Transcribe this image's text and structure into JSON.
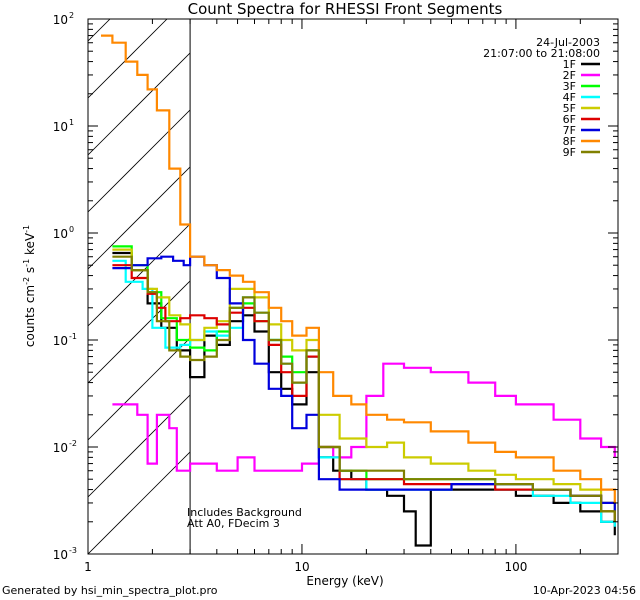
{
  "chart_data": {
    "type": "line",
    "title": "Count Spectra for RHESSI Front Segments",
    "xlabel": "Energy (keV)",
    "ylabel_parts": {
      "base": "counts cm",
      "exp1": "-2",
      "mid": " s",
      "exp2": "-1",
      "tail": " keV",
      "exp3": "-1"
    },
    "xscale": "log",
    "yscale": "log",
    "xlim": [
      1,
      300
    ],
    "ylim": [
      0.001,
      100
    ],
    "x_ticks": [
      {
        "value": 1,
        "label": "1"
      },
      {
        "value": 10,
        "label": "10"
      },
      {
        "value": 100,
        "label": "100"
      }
    ],
    "y_ticks": [
      {
        "value": 0.001,
        "base": "10",
        "exp": "-3"
      },
      {
        "value": 0.01,
        "base": "10",
        "exp": "-2"
      },
      {
        "value": 0.1,
        "base": "10",
        "exp": "-1"
      },
      {
        "value": 1,
        "base": "10",
        "exp": "0"
      },
      {
        "value": 10,
        "base": "10",
        "exp": "1"
      },
      {
        "value": 100,
        "base": "10",
        "exp": "2"
      }
    ],
    "date": "24-Jul-2003",
    "time_range": "21:07:00 to 21:08:00",
    "excluded_region": {
      "from": 1,
      "to": 3.0,
      "pattern": "hatched"
    },
    "annotations": [
      "Includes Background",
      "Att A0, FDecim 3"
    ],
    "series": [
      {
        "name": "1F",
        "color": "#000000",
        "points": [
          [
            1.3,
            0.65
          ],
          [
            1.6,
            0.45
          ],
          [
            1.9,
            0.22
          ],
          [
            2.2,
            0.13
          ],
          [
            2.6,
            0.08
          ],
          [
            3.0,
            0.045
          ],
          [
            3.5,
            0.11
          ],
          [
            4.0,
            0.09
          ],
          [
            4.6,
            0.15
          ],
          [
            5.3,
            0.17
          ],
          [
            6.0,
            0.12
          ],
          [
            7.0,
            0.05
          ],
          [
            8.0,
            0.035
          ],
          [
            9.0,
            0.025
          ],
          [
            10.5,
            0.05
          ],
          [
            12,
            0.008
          ],
          [
            14,
            0.006
          ],
          [
            17,
            0.005
          ],
          [
            20,
            0.004
          ],
          [
            25,
            0.0035
          ],
          [
            30,
            0.0025
          ],
          [
            34,
            0.0012
          ],
          [
            40,
            0.004
          ],
          [
            60,
            0.004
          ],
          [
            100,
            0.0035
          ],
          [
            150,
            0.003
          ],
          [
            200,
            0.0025
          ],
          [
            250,
            0.002
          ],
          [
            290,
            0.0015
          ]
        ]
      },
      {
        "name": "2F",
        "color": "#ff00ff",
        "points": [
          [
            1.3,
            0.025
          ],
          [
            1.7,
            0.02
          ],
          [
            1.9,
            0.007
          ],
          [
            2.1,
            0.02
          ],
          [
            2.4,
            0.015
          ],
          [
            2.6,
            0.006
          ],
          [
            3.0,
            0.007
          ],
          [
            4.0,
            0.006
          ],
          [
            5.0,
            0.008
          ],
          [
            6.0,
            0.006
          ],
          [
            8.0,
            0.006
          ],
          [
            10,
            0.007
          ],
          [
            12,
            0.01
          ],
          [
            14,
            0.008
          ],
          [
            17,
            0.01
          ],
          [
            20,
            0.03
          ],
          [
            24,
            0.06
          ],
          [
            30,
            0.055
          ],
          [
            40,
            0.05
          ],
          [
            60,
            0.04
          ],
          [
            80,
            0.03
          ],
          [
            100,
            0.025
          ],
          [
            150,
            0.018
          ],
          [
            200,
            0.012
          ],
          [
            250,
            0.01
          ],
          [
            290,
            0.008
          ]
        ]
      },
      {
        "name": "3F",
        "color": "#00ff00",
        "points": [
          [
            1.3,
            0.75
          ],
          [
            1.6,
            0.5
          ],
          [
            1.9,
            0.28
          ],
          [
            2.2,
            0.16
          ],
          [
            2.6,
            0.1
          ],
          [
            3.0,
            0.085
          ],
          [
            3.5,
            0.08
          ],
          [
            4.0,
            0.12
          ],
          [
            4.6,
            0.2
          ],
          [
            5.3,
            0.22
          ],
          [
            6.0,
            0.15
          ],
          [
            7.0,
            0.1
          ],
          [
            8.0,
            0.07
          ],
          [
            9.0,
            0.05
          ],
          [
            10.5,
            0.08
          ],
          [
            12,
            0.01
          ],
          [
            15,
            0.006
          ],
          [
            20,
            0.005
          ],
          [
            30,
            0.005
          ],
          [
            50,
            0.005
          ],
          [
            80,
            0.0045
          ],
          [
            120,
            0.004
          ],
          [
            180,
            0.0035
          ],
          [
            250,
            0.0025
          ],
          [
            290,
            0.002
          ]
        ]
      },
      {
        "name": "4F",
        "color": "#00ffff",
        "points": [
          [
            1.3,
            0.55
          ],
          [
            1.5,
            0.35
          ],
          [
            1.8,
            0.3
          ],
          [
            2.0,
            0.13
          ],
          [
            2.3,
            0.085
          ],
          [
            2.7,
            0.09
          ],
          [
            3.0,
            0.1
          ],
          [
            3.5,
            0.12
          ],
          [
            4.0,
            0.11
          ],
          [
            4.6,
            0.13
          ],
          [
            5.3,
            0.25
          ],
          [
            6.0,
            0.18
          ],
          [
            7.0,
            0.1
          ],
          [
            8.0,
            0.06
          ],
          [
            9.0,
            0.04
          ],
          [
            10.5,
            0.07
          ],
          [
            12,
            0.008
          ],
          [
            15,
            0.005
          ],
          [
            20,
            0.004
          ],
          [
            30,
            0.004
          ],
          [
            50,
            0.0045
          ],
          [
            80,
            0.004
          ],
          [
            120,
            0.0035
          ],
          [
            180,
            0.003
          ],
          [
            250,
            0.002
          ],
          [
            290,
            0.0018
          ]
        ]
      },
      {
        "name": "5F",
        "color": "#cccc00",
        "points": [
          [
            1.3,
            0.7
          ],
          [
            1.6,
            0.45
          ],
          [
            1.9,
            0.3
          ],
          [
            2.1,
            0.25
          ],
          [
            2.4,
            0.17
          ],
          [
            2.7,
            0.14
          ],
          [
            3.0,
            0.1
          ],
          [
            3.5,
            0.13
          ],
          [
            4.0,
            0.15
          ],
          [
            4.6,
            0.3
          ],
          [
            5.3,
            0.3
          ],
          [
            6.0,
            0.25
          ],
          [
            7.0,
            0.14
          ],
          [
            8.0,
            0.1
          ],
          [
            9.0,
            0.08
          ],
          [
            10.5,
            0.1
          ],
          [
            12,
            0.02
          ],
          [
            15,
            0.012
          ],
          [
            20,
            0.01
          ],
          [
            25,
            0.011
          ],
          [
            30,
            0.008
          ],
          [
            40,
            0.007
          ],
          [
            60,
            0.006
          ],
          [
            80,
            0.0055
          ],
          [
            100,
            0.005
          ],
          [
            150,
            0.0045
          ],
          [
            200,
            0.004
          ],
          [
            250,
            0.003
          ],
          [
            290,
            0.0025
          ]
        ]
      },
      {
        "name": "6F",
        "color": "#dd0000",
        "points": [
          [
            1.3,
            0.5
          ],
          [
            1.6,
            0.38
          ],
          [
            1.9,
            0.27
          ],
          [
            2.1,
            0.2
          ],
          [
            2.3,
            0.15
          ],
          [
            2.7,
            0.16
          ],
          [
            3.0,
            0.17
          ],
          [
            3.5,
            0.16
          ],
          [
            4.0,
            0.14
          ],
          [
            4.6,
            0.18
          ],
          [
            5.3,
            0.2
          ],
          [
            6.0,
            0.15
          ],
          [
            7.0,
            0.09
          ],
          [
            8.0,
            0.05
          ],
          [
            9.0,
            0.03
          ],
          [
            10.5,
            0.07
          ],
          [
            12,
            0.01
          ],
          [
            15,
            0.005
          ],
          [
            20,
            0.005
          ],
          [
            30,
            0.0045
          ],
          [
            50,
            0.0045
          ],
          [
            80,
            0.004
          ],
          [
            120,
            0.004
          ],
          [
            180,
            0.0035
          ],
          [
            250,
            0.0025
          ],
          [
            290,
            0.002
          ]
        ]
      },
      {
        "name": "7F",
        "color": "#0000dd",
        "points": [
          [
            1.3,
            0.47
          ],
          [
            1.6,
            0.5
          ],
          [
            1.9,
            0.58
          ],
          [
            2.2,
            0.6
          ],
          [
            2.5,
            0.55
          ],
          [
            2.8,
            0.5
          ],
          [
            3.0,
            0.6
          ],
          [
            3.5,
            0.5
          ],
          [
            4.0,
            0.38
          ],
          [
            4.6,
            0.22
          ],
          [
            5.3,
            0.1
          ],
          [
            6.0,
            0.06
          ],
          [
            7.0,
            0.035
          ],
          [
            8.0,
            0.03
          ],
          [
            9.0,
            0.015
          ],
          [
            10.5,
            0.02
          ],
          [
            12,
            0.005
          ],
          [
            15,
            0.004
          ],
          [
            20,
            0.004
          ],
          [
            30,
            0.004
          ],
          [
            50,
            0.0045
          ],
          [
            80,
            0.0045
          ],
          [
            120,
            0.004
          ],
          [
            180,
            0.0035
          ],
          [
            250,
            0.003
          ],
          [
            290,
            0.0025
          ]
        ]
      },
      {
        "name": "8F",
        "color": "#ff8800",
        "points": [
          [
            1.15,
            70
          ],
          [
            1.3,
            60
          ],
          [
            1.5,
            40
          ],
          [
            1.7,
            30
          ],
          [
            1.9,
            22
          ],
          [
            2.1,
            14
          ],
          [
            2.4,
            4
          ],
          [
            2.7,
            1.2
          ],
          [
            3.0,
            0.6
          ],
          [
            3.5,
            0.5
          ],
          [
            4.0,
            0.45
          ],
          [
            4.6,
            0.4
          ],
          [
            5.3,
            0.35
          ],
          [
            6.0,
            0.28
          ],
          [
            7.0,
            0.2
          ],
          [
            8.0,
            0.15
          ],
          [
            9.0,
            0.11
          ],
          [
            10.5,
            0.13
          ],
          [
            12,
            0.05
          ],
          [
            14,
            0.03
          ],
          [
            17,
            0.025
          ],
          [
            20,
            0.02
          ],
          [
            25,
            0.018
          ],
          [
            30,
            0.017
          ],
          [
            40,
            0.014
          ],
          [
            60,
            0.011
          ],
          [
            80,
            0.009
          ],
          [
            100,
            0.008
          ],
          [
            150,
            0.006
          ],
          [
            200,
            0.005
          ],
          [
            250,
            0.004
          ],
          [
            290,
            0.003
          ]
        ]
      },
      {
        "name": "9F",
        "color": "#808000",
        "points": [
          [
            1.3,
            0.6
          ],
          [
            1.6,
            0.45
          ],
          [
            1.9,
            0.28
          ],
          [
            2.1,
            0.15
          ],
          [
            2.4,
            0.08
          ],
          [
            2.7,
            0.07
          ],
          [
            3.0,
            0.065
          ],
          [
            3.5,
            0.07
          ],
          [
            4.0,
            0.1
          ],
          [
            4.6,
            0.2
          ],
          [
            5.3,
            0.25
          ],
          [
            6.0,
            0.18
          ],
          [
            7.0,
            0.1
          ],
          [
            8.0,
            0.06
          ],
          [
            9.0,
            0.04
          ],
          [
            10.5,
            0.08
          ],
          [
            12,
            0.01
          ],
          [
            15,
            0.006
          ],
          [
            20,
            0.006
          ],
          [
            30,
            0.005
          ],
          [
            50,
            0.005
          ],
          [
            80,
            0.0045
          ],
          [
            120,
            0.004
          ],
          [
            180,
            0.0035
          ],
          [
            250,
            0.0025
          ],
          [
            290,
            0.002
          ]
        ]
      }
    ]
  },
  "footer": {
    "generated_by": "Generated by hsi_min_spectra_plot.pro",
    "timestamp": "10-Apr-2023 04:56"
  }
}
